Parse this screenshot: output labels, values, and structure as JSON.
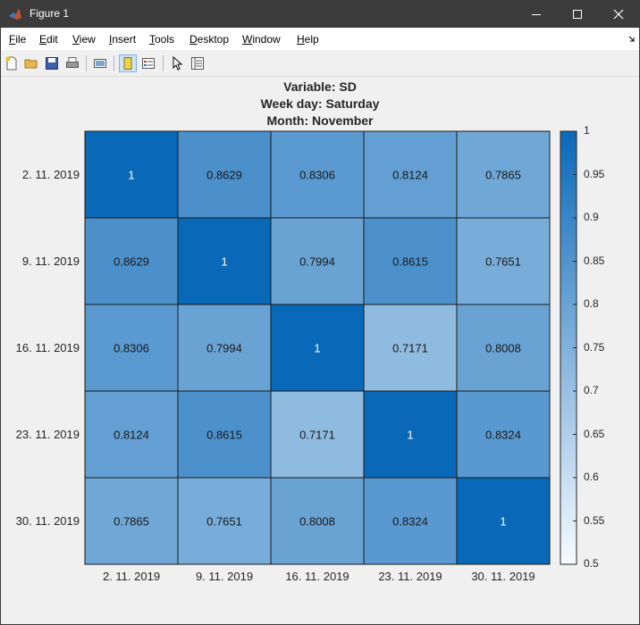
{
  "window": {
    "title": "Figure 1"
  },
  "menu": [
    "File",
    "Edit",
    "View",
    "Insert",
    "Tools",
    "Desktop",
    "Window",
    "Help"
  ],
  "toolbar_icons": [
    "new-figure-icon",
    "open-file-icon",
    "save-icon",
    "print-icon",
    "link-plot-icon",
    "dock-figure-icon",
    "insert-legend-icon",
    "edit-plot-pointer-icon",
    "property-inspector-icon"
  ],
  "plot": {
    "title_lines": [
      "Variable: SD",
      "Week day: Saturday",
      "Month: November"
    ]
  },
  "chart_data": {
    "type": "heatmap",
    "title": "Variable: SD\nWeek day: Saturday\nMonth: November",
    "x_labels": [
      "2. 11. 2019",
      "9. 11. 2019",
      "16. 11. 2019",
      "23. 11. 2019",
      "30. 11. 2019"
    ],
    "y_labels": [
      "2. 11. 2019",
      "9. 11. 2019",
      "16. 11. 2019",
      "23. 11. 2019",
      "30. 11. 2019"
    ],
    "values": [
      [
        1,
        0.8629,
        0.8306,
        0.8124,
        0.7865
      ],
      [
        0.8629,
        1,
        0.7994,
        0.8615,
        0.7651
      ],
      [
        0.8306,
        0.7994,
        1,
        0.7171,
        0.8008
      ],
      [
        0.8124,
        0.8615,
        0.7171,
        1,
        0.8324
      ],
      [
        0.7865,
        0.7651,
        0.8008,
        0.8324,
        1
      ]
    ],
    "cell_labels": [
      [
        "1",
        "0.8629",
        "0.8306",
        "0.8124",
        "0.7865"
      ],
      [
        "0.8629",
        "1",
        "0.7994",
        "0.8615",
        "0.7651"
      ],
      [
        "0.8306",
        "0.7994",
        "1",
        "0.7171",
        "0.8008"
      ],
      [
        "0.8124",
        "0.8615",
        "0.7171",
        "1",
        "0.8324"
      ],
      [
        "0.7865",
        "0.7651",
        "0.8008",
        "0.8324",
        "1"
      ]
    ],
    "colorbar": {
      "min": 0.5,
      "max": 1,
      "ticks": [
        "1",
        "0.95",
        "0.9",
        "0.85",
        "0.8",
        "0.75",
        "0.7",
        "0.65",
        "0.6",
        "0.55",
        "0.5"
      ],
      "color_low": "#f7fbff",
      "color_high": "#0a68b8"
    },
    "grid": true
  }
}
